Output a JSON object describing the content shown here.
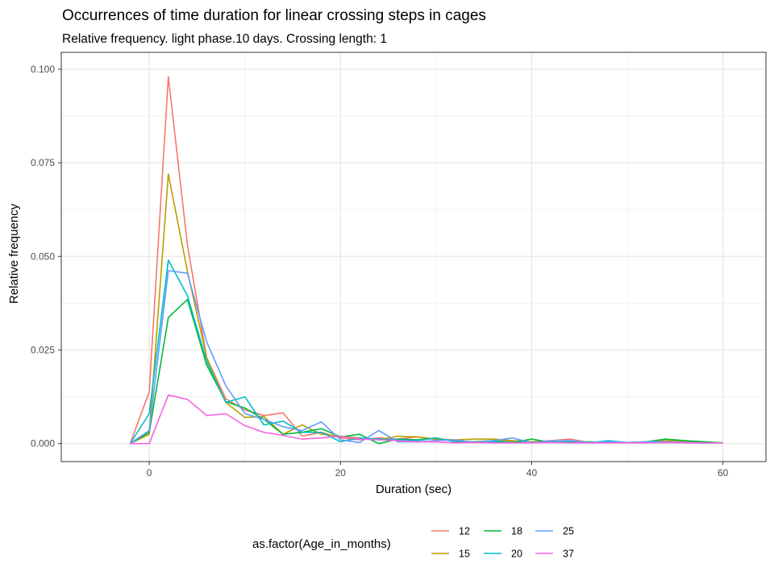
{
  "chart_data": {
    "type": "line",
    "title": "Occurrences of time duration for linear crossing steps in cages",
    "subtitle": "Relative frequency. light phase.10 days. Crossing length: 1",
    "xlabel": "Duration (sec)",
    "ylabel": "Relative frequency",
    "xlim": [
      -9.2,
      64.5
    ],
    "ylim": [
      -0.0048,
      0.1045
    ],
    "x_ticks": [
      0,
      20,
      40,
      60
    ],
    "x_tick_labels": [
      "0",
      "20",
      "40",
      "60"
    ],
    "y_ticks": [
      0,
      0.025,
      0.05,
      0.075,
      0.1
    ],
    "y_tick_labels": [
      "0.000",
      "0.025",
      "0.050",
      "0.075",
      "0.100"
    ],
    "grid": true,
    "legend": {
      "title": "as.factor(Age_in_months)",
      "position": "bottom"
    },
    "x": [
      -2,
      0,
      2,
      4,
      6,
      8,
      10,
      12,
      14,
      16,
      18,
      20,
      22,
      24,
      26,
      28,
      30,
      32,
      34,
      36,
      38,
      40,
      42,
      44,
      46,
      48,
      50,
      52,
      54,
      56,
      58,
      60
    ],
    "series": [
      {
        "name": "12",
        "color": "#F8766D",
        "values": [
          0,
          0.0138,
          0.098,
          0.053,
          0.023,
          0.012,
          0.009,
          0.0075,
          0.0082,
          0.002,
          0.003,
          0.0015,
          0.001,
          0.0015,
          0.0012,
          0.0018,
          0.001,
          0.0008,
          0.0005,
          0.0008,
          0.0005,
          0.0005,
          0.0008,
          0.0012,
          0.0003,
          0.0005,
          0.0002,
          0.0005,
          0.0005,
          0.0005,
          0.0002,
          0.0002
        ]
      },
      {
        "name": "15",
        "color": "#B79F00",
        "values": [
          0,
          0.0025,
          0.072,
          0.046,
          0.023,
          0.011,
          0.007,
          0.0072,
          0.0025,
          0.005,
          0.0025,
          0.002,
          0.0015,
          0.001,
          0.002,
          0.0018,
          0.0012,
          0.001,
          0.0012,
          0.0012,
          0.0008,
          0.0005,
          0.0005,
          0.0003,
          0.0003,
          0.0002,
          0.0003,
          0.0005,
          0.0008,
          0.0008,
          0.0005,
          0.0002
        ]
      },
      {
        "name": "18",
        "color": "#00BA38",
        "values": [
          0,
          0.003,
          0.0337,
          0.0385,
          0.021,
          0.0112,
          0.0095,
          0.0065,
          0.0025,
          0.003,
          0.004,
          0.0018,
          0.0025,
          0.0,
          0.0012,
          0.001,
          0.0015,
          0.0005,
          0.0005,
          0.0008,
          0.0003,
          0.0012,
          0.0003,
          0.0005,
          0.0005,
          0.0003,
          0.0002,
          0.0005,
          0.0012,
          0.0008,
          0.0005,
          0.0002
        ]
      },
      {
        "name": "20",
        "color": "#00BFC4",
        "values": [
          0,
          0.008,
          0.049,
          0.0395,
          0.022,
          0.011,
          0.0125,
          0.005,
          0.006,
          0.003,
          0.003,
          0.0005,
          0.0015,
          0.0012,
          0.001,
          0.0008,
          0.0015,
          0.0005,
          0.0003,
          0.0005,
          0.0003,
          0.0003,
          0.0005,
          0.0003,
          0.0002,
          0.0008,
          0.0003,
          0.0002,
          0.0003,
          0.0002,
          0.0002,
          0.0002
        ]
      },
      {
        "name": "25",
        "color": "#619CFF",
        "values": [
          0,
          0.0035,
          0.0462,
          0.0455,
          0.0272,
          0.0155,
          0.008,
          0.0065,
          0.0045,
          0.0035,
          0.0058,
          0.001,
          0.0003,
          0.0035,
          0.0005,
          0.0005,
          0.0008,
          0.001,
          0.0003,
          0.0008,
          0.0015,
          0.0002,
          0.0008,
          0.0008,
          0.0003,
          0.0005,
          0.0003,
          0.0005,
          0.0005,
          0.0003,
          0.0002,
          0.0002
        ]
      },
      {
        "name": "37",
        "color": "#F564E3",
        "values": [
          0,
          0.0,
          0.013,
          0.0118,
          0.0075,
          0.008,
          0.0048,
          0.003,
          0.0022,
          0.0012,
          0.0015,
          0.002,
          0.0012,
          0.001,
          0.0008,
          0.0005,
          0.0005,
          0.0002,
          0.0003,
          0.0002,
          0.0002,
          0.0002,
          0.0003,
          0.0002,
          0.0002,
          0.0002,
          0.0002,
          0.0002,
          0.0003,
          0.0002,
          0.0002,
          0.0002
        ]
      }
    ]
  }
}
